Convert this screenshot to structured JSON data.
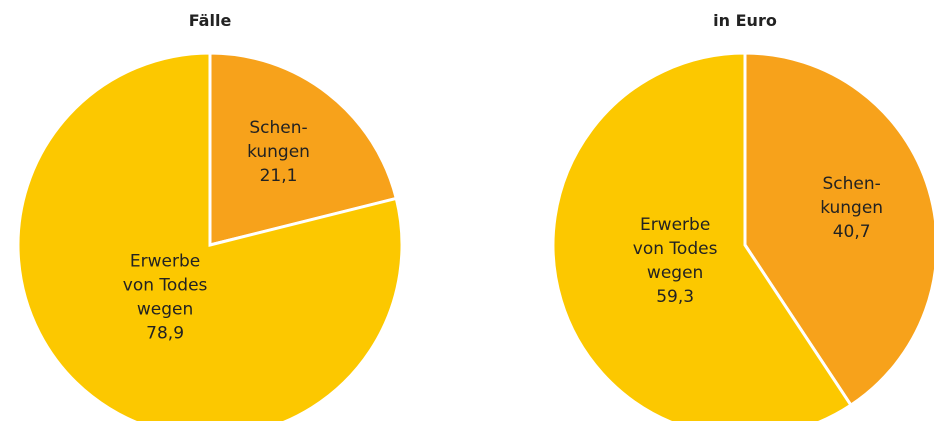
{
  "chart_data": [
    {
      "type": "pie",
      "title": "Fälle",
      "categories": [
        "Schen-\nkungen",
        "Erwerbe\nvon Todes\nwegen"
      ],
      "values": [
        21.1,
        78.9
      ],
      "value_labels": [
        "21,1",
        "78,9"
      ],
      "colors": [
        "#f7a21b",
        "#fcc800"
      ]
    },
    {
      "type": "pie",
      "title": "in Euro",
      "categories": [
        "Schen-\nkungen",
        "Erwerbe\nvon Todes\nwegen"
      ],
      "values": [
        40.7,
        59.3
      ],
      "value_labels": [
        "40,7",
        "59,3"
      ],
      "colors": [
        "#f7a21b",
        "#fcc800"
      ]
    }
  ]
}
